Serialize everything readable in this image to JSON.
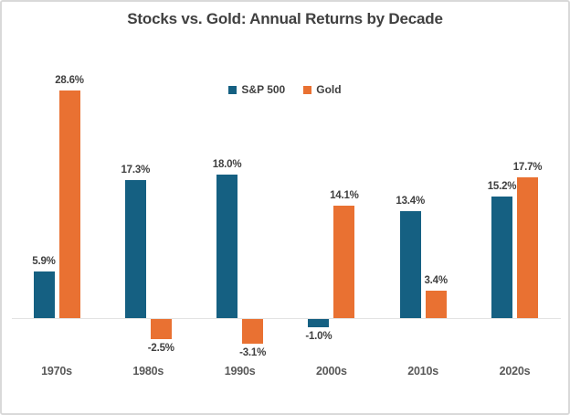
{
  "chart_data": {
    "type": "bar",
    "title": "Stocks vs. Gold: Annual Returns by Decade",
    "categories": [
      "1970s",
      "1980s",
      "1990s",
      "2000s",
      "2010s",
      "2020s"
    ],
    "series": [
      {
        "name": "S&P 500",
        "color": "#156082",
        "values": [
          5.9,
          17.3,
          18.0,
          -1.0,
          13.4,
          15.2
        ]
      },
      {
        "name": "Gold",
        "color": "#E97132",
        "values": [
          28.6,
          -2.5,
          -3.1,
          14.1,
          3.4,
          17.7
        ]
      }
    ],
    "value_suffix": "%",
    "xlabel": "",
    "ylabel": "",
    "ylim": [
      -5,
      30
    ],
    "grid": false,
    "legend_position": "top-center",
    "axis_line_color": "#E3E3E3"
  }
}
